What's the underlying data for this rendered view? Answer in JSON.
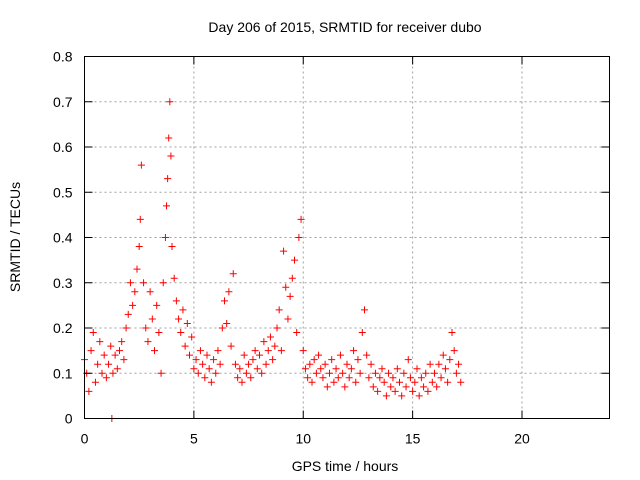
{
  "chart_data": {
    "type": "scatter",
    "title": "Day 206 of 2015, SRMTID for receiver dubo",
    "xlabel": "GPS time / hours",
    "ylabel": "SRMTID / TECUs",
    "xlim": [
      0,
      24
    ],
    "ylim": [
      0,
      0.8
    ],
    "xticks": [
      0,
      5,
      10,
      15,
      20
    ],
    "xtick_labels": [
      "0",
      "5",
      "10",
      "15",
      "20"
    ],
    "yticks": [
      0,
      0.1,
      0.2,
      0.3,
      0.4,
      0.5,
      0.6,
      0.7,
      0.8
    ],
    "ytick_labels": [
      "0",
      "0.1",
      "0.2",
      "0.3",
      "0.4",
      "0.5",
      "0.6",
      "0.7",
      "0.8"
    ],
    "grid": true,
    "marker": "+",
    "marker_color": "#ff0000",
    "series": [
      {
        "name": "SRMTID",
        "color": "#ff0000",
        "points": [
          [
            0.0,
            0.13
          ],
          [
            0.1,
            0.1
          ],
          [
            0.2,
            0.06
          ],
          [
            0.3,
            0.15
          ],
          [
            0.4,
            0.19
          ],
          [
            0.5,
            0.08
          ],
          [
            0.6,
            0.12
          ],
          [
            0.7,
            0.17
          ],
          [
            0.8,
            0.1
          ],
          [
            0.9,
            0.14
          ],
          [
            1.0,
            0.09
          ],
          [
            1.1,
            0.12
          ],
          [
            1.2,
            0.16
          ],
          [
            1.25,
            0.0
          ],
          [
            1.3,
            0.1
          ],
          [
            1.4,
            0.14
          ],
          [
            1.5,
            0.11
          ],
          [
            1.6,
            0.15
          ],
          [
            1.7,
            0.17
          ],
          [
            1.8,
            0.13
          ],
          [
            1.9,
            0.2
          ],
          [
            2.0,
            0.23
          ],
          [
            2.1,
            0.3
          ],
          [
            2.2,
            0.25
          ],
          [
            2.3,
            0.28
          ],
          [
            2.4,
            0.33
          ],
          [
            2.5,
            0.38
          ],
          [
            2.55,
            0.44
          ],
          [
            2.6,
            0.56
          ],
          [
            2.7,
            0.3
          ],
          [
            2.8,
            0.2
          ],
          [
            2.9,
            0.17
          ],
          [
            3.0,
            0.28
          ],
          [
            3.1,
            0.22
          ],
          [
            3.2,
            0.15
          ],
          [
            3.3,
            0.25
          ],
          [
            3.4,
            0.19
          ],
          [
            3.5,
            0.1
          ],
          [
            3.6,
            0.3
          ],
          [
            3.7,
            0.4
          ],
          [
            3.75,
            0.47
          ],
          [
            3.8,
            0.53
          ],
          [
            3.85,
            0.62
          ],
          [
            3.9,
            0.7
          ],
          [
            3.95,
            0.58
          ],
          [
            4.0,
            0.38
          ],
          [
            4.1,
            0.31
          ],
          [
            4.2,
            0.26
          ],
          [
            4.3,
            0.22
          ],
          [
            4.4,
            0.19
          ],
          [
            4.5,
            0.24
          ],
          [
            4.6,
            0.16
          ],
          [
            4.7,
            0.21
          ],
          [
            4.8,
            0.14
          ],
          [
            4.9,
            0.18
          ],
          [
            5.0,
            0.11
          ],
          [
            5.1,
            0.13
          ],
          [
            5.2,
            0.1
          ],
          [
            5.3,
            0.15
          ],
          [
            5.4,
            0.12
          ],
          [
            5.5,
            0.09
          ],
          [
            5.6,
            0.14
          ],
          [
            5.7,
            0.11
          ],
          [
            5.8,
            0.08
          ],
          [
            5.9,
            0.13
          ],
          [
            6.0,
            0.1
          ],
          [
            6.1,
            0.15
          ],
          [
            6.2,
            0.12
          ],
          [
            6.3,
            0.2
          ],
          [
            6.4,
            0.26
          ],
          [
            6.5,
            0.21
          ],
          [
            6.6,
            0.28
          ],
          [
            6.7,
            0.16
          ],
          [
            6.8,
            0.32
          ],
          [
            6.9,
            0.12
          ],
          [
            7.0,
            0.09
          ],
          [
            7.1,
            0.11
          ],
          [
            7.2,
            0.08
          ],
          [
            7.3,
            0.14
          ],
          [
            7.4,
            0.1
          ],
          [
            7.5,
            0.12
          ],
          [
            7.6,
            0.09
          ],
          [
            7.7,
            0.13
          ],
          [
            7.8,
            0.15
          ],
          [
            7.9,
            0.11
          ],
          [
            8.0,
            0.14
          ],
          [
            8.1,
            0.1
          ],
          [
            8.2,
            0.17
          ],
          [
            8.3,
            0.12
          ],
          [
            8.4,
            0.15
          ],
          [
            8.5,
            0.18
          ],
          [
            8.6,
            0.13
          ],
          [
            8.7,
            0.16
          ],
          [
            8.8,
            0.2
          ],
          [
            8.9,
            0.24
          ],
          [
            9.0,
            0.15
          ],
          [
            9.1,
            0.37
          ],
          [
            9.2,
            0.29
          ],
          [
            9.3,
            0.22
          ],
          [
            9.4,
            0.27
          ],
          [
            9.5,
            0.31
          ],
          [
            9.6,
            0.35
          ],
          [
            9.7,
            0.19
          ],
          [
            9.8,
            0.4
          ],
          [
            9.9,
            0.44
          ],
          [
            10.0,
            0.15
          ],
          [
            10.1,
            0.11
          ],
          [
            10.2,
            0.09
          ],
          [
            10.3,
            0.12
          ],
          [
            10.4,
            0.08
          ],
          [
            10.5,
            0.13
          ],
          [
            10.6,
            0.1
          ],
          [
            10.7,
            0.14
          ],
          [
            10.8,
            0.11
          ],
          [
            10.9,
            0.09
          ],
          [
            11.0,
            0.12
          ],
          [
            11.1,
            0.07
          ],
          [
            11.2,
            0.1
          ],
          [
            11.3,
            0.13
          ],
          [
            11.4,
            0.08
          ],
          [
            11.5,
            0.11
          ],
          [
            11.6,
            0.09
          ],
          [
            11.7,
            0.14
          ],
          [
            11.8,
            0.1
          ],
          [
            11.9,
            0.07
          ],
          [
            12.0,
            0.12
          ],
          [
            12.1,
            0.09
          ],
          [
            12.2,
            0.11
          ],
          [
            12.3,
            0.15
          ],
          [
            12.4,
            0.08
          ],
          [
            12.5,
            0.13
          ],
          [
            12.6,
            0.1
          ],
          [
            12.7,
            0.19
          ],
          [
            12.8,
            0.24
          ],
          [
            12.9,
            0.14
          ],
          [
            13.0,
            0.09
          ],
          [
            13.1,
            0.12
          ],
          [
            13.2,
            0.07
          ],
          [
            13.3,
            0.1
          ],
          [
            13.4,
            0.06
          ],
          [
            13.5,
            0.09
          ],
          [
            13.6,
            0.11
          ],
          [
            13.7,
            0.08
          ],
          [
            13.8,
            0.05
          ],
          [
            13.9,
            0.1
          ],
          [
            14.0,
            0.07
          ],
          [
            14.1,
            0.09
          ],
          [
            14.2,
            0.06
          ],
          [
            14.3,
            0.11
          ],
          [
            14.4,
            0.08
          ],
          [
            14.5,
            0.05
          ],
          [
            14.6,
            0.1
          ],
          [
            14.7,
            0.07
          ],
          [
            14.8,
            0.13
          ],
          [
            14.9,
            0.09
          ],
          [
            15.0,
            0.06
          ],
          [
            15.1,
            0.08
          ],
          [
            15.2,
            0.11
          ],
          [
            15.3,
            0.05
          ],
          [
            15.4,
            0.09
          ],
          [
            15.5,
            0.07
          ],
          [
            15.6,
            0.1
          ],
          [
            15.7,
            0.06
          ],
          [
            15.8,
            0.12
          ],
          [
            15.9,
            0.08
          ],
          [
            16.0,
            0.1
          ],
          [
            16.1,
            0.07
          ],
          [
            16.2,
            0.12
          ],
          [
            16.3,
            0.09
          ],
          [
            16.4,
            0.14
          ],
          [
            16.5,
            0.11
          ],
          [
            16.6,
            0.08
          ],
          [
            16.7,
            0.13
          ],
          [
            16.8,
            0.19
          ],
          [
            16.9,
            0.15
          ],
          [
            17.0,
            0.1
          ],
          [
            17.1,
            0.12
          ],
          [
            17.2,
            0.08
          ]
        ]
      }
    ]
  }
}
